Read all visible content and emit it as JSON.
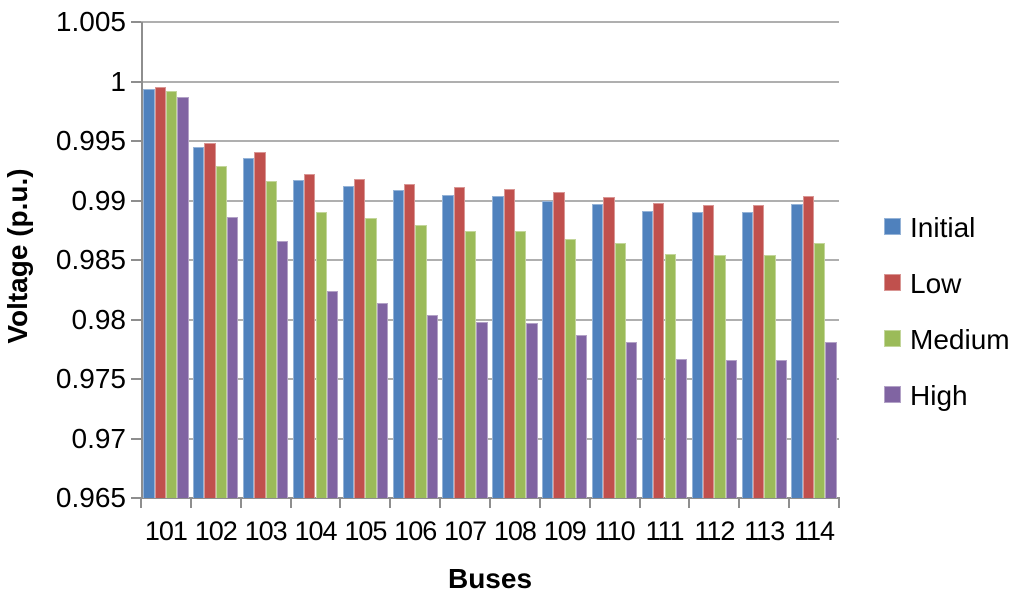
{
  "page": {
    "background": "#FFFFFF",
    "text_color": "#000000",
    "gridline_color": "#AFAFAF",
    "axis_color": "#8E8E8E"
  },
  "chart_data": {
    "type": "bar",
    "title": "",
    "xlabel": "Buses",
    "ylabel": "Voltage (p.u.)",
    "ylim": [
      0.965,
      1.005
    ],
    "ytick_step": 0.005,
    "ytick_labels": [
      "1.005",
      "1",
      "0.995",
      "0.99",
      "0.985",
      "0.98",
      "0.975",
      "0.97",
      "0.965"
    ],
    "yticks": [
      1.005,
      1.0,
      0.995,
      0.99,
      0.985,
      0.98,
      0.975,
      0.97,
      0.965
    ],
    "grid": true,
    "legend_position": "right",
    "categories": [
      "101",
      "102",
      "103",
      "104",
      "105",
      "106",
      "107",
      "108",
      "109",
      "110",
      "111",
      "112",
      "113",
      "114"
    ],
    "series": [
      {
        "name": "Initial",
        "color": "#4F81BD",
        "border": "#95B3D7",
        "values": [
          0.9994,
          0.9945,
          0.9936,
          0.9917,
          0.9912,
          0.9909,
          0.9905,
          0.9904,
          0.99,
          0.9897,
          0.9891,
          0.989,
          0.989,
          0.9897
        ]
      },
      {
        "name": "Low",
        "color": "#C0504D",
        "border": "#D99694",
        "values": [
          0.9995,
          0.9948,
          0.9941,
          0.9922,
          0.9918,
          0.9914,
          0.9911,
          0.991,
          0.9907,
          0.9903,
          0.9898,
          0.9896,
          0.9896,
          0.9904
        ]
      },
      {
        "name": "Medium",
        "color": "#9BBB59",
        "border": "#C3D69B",
        "values": [
          0.9992,
          0.9929,
          0.9916,
          0.989,
          0.9885,
          0.9879,
          0.9874,
          0.9874,
          0.9868,
          0.9864,
          0.9855,
          0.9854,
          0.9854,
          0.9864
        ]
      },
      {
        "name": "High",
        "color": "#8064A2",
        "border": "#B3A2C7",
        "values": [
          0.9987,
          0.9886,
          0.9866,
          0.9824,
          0.9814,
          0.9804,
          0.9798,
          0.9797,
          0.9787,
          0.9781,
          0.9767,
          0.9766,
          0.9766,
          0.9781
        ]
      }
    ]
  }
}
